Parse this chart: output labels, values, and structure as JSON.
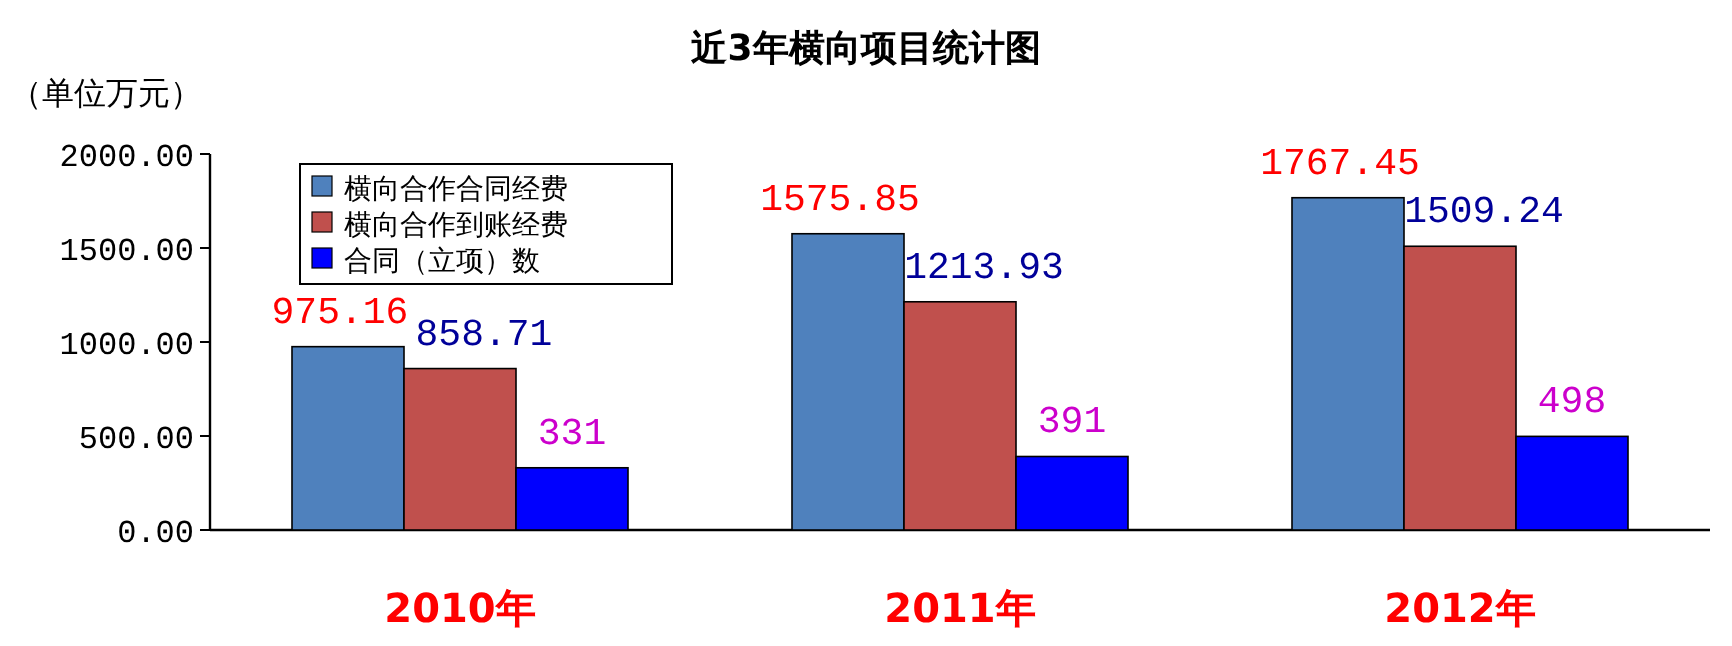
{
  "chart_data": {
    "type": "bar",
    "title": "近3年横向项目统计图",
    "ylabel": "（单位万元）",
    "categories": [
      "2010年",
      "2011年",
      "2012年"
    ],
    "series": [
      {
        "name": "横向合作合同经费",
        "color": "#4f81bd",
        "values": [
          975.16,
          1575.85,
          1767.45
        ]
      },
      {
        "name": "横向合作到账经费",
        "color": "#c0504d",
        "values": [
          858.71,
          1213.93,
          1509.24
        ]
      },
      {
        "name": "合同（立项）数",
        "color": "#0000ff",
        "values": [
          331,
          391,
          498
        ]
      }
    ],
    "ylim": [
      0,
      2000
    ],
    "yticks": [
      {
        "value": 0,
        "label": "0.00"
      },
      {
        "value": 500,
        "label": "500.00"
      },
      {
        "value": 1000,
        "label": "1000.00"
      },
      {
        "value": 1500,
        "label": "1500.00"
      },
      {
        "value": 2000,
        "label": "2000.00"
      }
    ],
    "data_labels": true,
    "grid": false,
    "legend": "top left"
  }
}
